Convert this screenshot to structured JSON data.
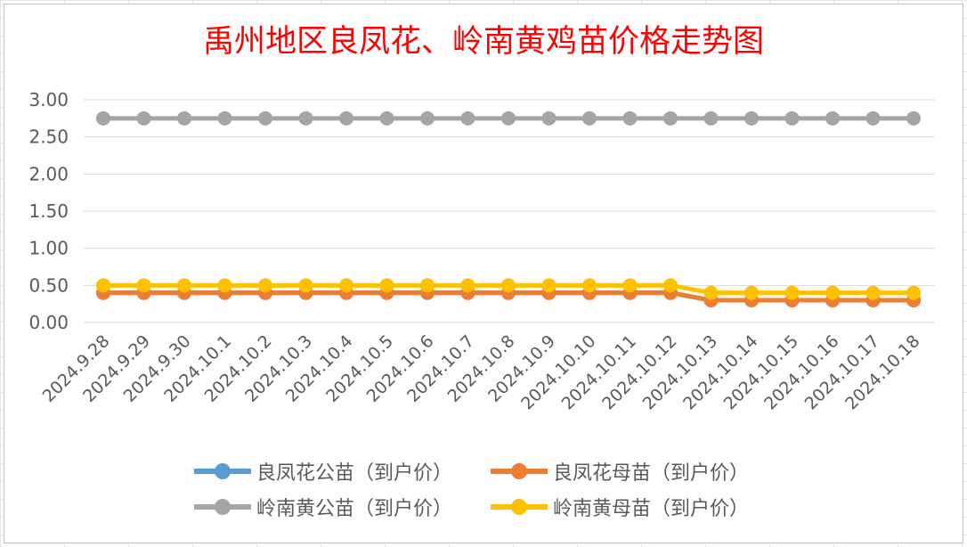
{
  "colors": {
    "title": "#ff0000",
    "grid": "#d9d9d9",
    "axis_text": "#595959"
  },
  "chart_data": {
    "type": "line",
    "title": "禹州地区良凤花、岭南黄鸡苗价格走势图",
    "xlabel": "",
    "ylabel": "",
    "ylim": [
      0,
      3
    ],
    "ytick_step": 0.5,
    "yticks": [
      "0.00",
      "0.50",
      "1.00",
      "1.50",
      "2.00",
      "2.50",
      "3.00"
    ],
    "grid": true,
    "legend_position": "bottom",
    "categories": [
      "2024.9.28",
      "2024.9.29",
      "2024.9.30",
      "2024.10.1",
      "2024.10.2",
      "2024.10.3",
      "2024.10.4",
      "2024.10.5",
      "2024.10.6",
      "2024.10.7",
      "2024.10.8",
      "2024.10.9",
      "2024.10.10",
      "2024.10.11",
      "2024.10.12",
      "2024.10.13",
      "2024.10.14",
      "2024.10.15",
      "2024.10.16",
      "2024.10.17",
      "2024.10.18"
    ],
    "series": [
      {
        "name": "良凤花公苗（到户价）",
        "color": "#5b9bd5",
        "values": [
          0.4,
          0.4,
          0.4,
          0.4,
          0.4,
          0.4,
          0.4,
          0.4,
          0.4,
          0.4,
          0.4,
          0.4,
          0.4,
          0.4,
          0.4,
          0.3,
          0.3,
          0.3,
          0.3,
          0.3,
          0.3
        ]
      },
      {
        "name": "良凤花母苗（到户价）",
        "color": "#ed7d31",
        "values": [
          0.4,
          0.4,
          0.4,
          0.4,
          0.4,
          0.4,
          0.4,
          0.4,
          0.4,
          0.4,
          0.4,
          0.4,
          0.4,
          0.4,
          0.4,
          0.3,
          0.3,
          0.3,
          0.3,
          0.3,
          0.3
        ]
      },
      {
        "name": "岭南黄公苗（到户价）",
        "color": "#a5a5a5",
        "values": [
          2.75,
          2.75,
          2.75,
          2.75,
          2.75,
          2.75,
          2.75,
          2.75,
          2.75,
          2.75,
          2.75,
          2.75,
          2.75,
          2.75,
          2.75,
          2.75,
          2.75,
          2.75,
          2.75,
          2.75,
          2.75
        ]
      },
      {
        "name": "岭南黄母苗（到户价）",
        "color": "#ffc000",
        "values": [
          0.5,
          0.5,
          0.5,
          0.5,
          0.5,
          0.5,
          0.5,
          0.5,
          0.5,
          0.5,
          0.5,
          0.5,
          0.5,
          0.5,
          0.5,
          0.4,
          0.4,
          0.4,
          0.4,
          0.4,
          0.4
        ]
      }
    ]
  }
}
